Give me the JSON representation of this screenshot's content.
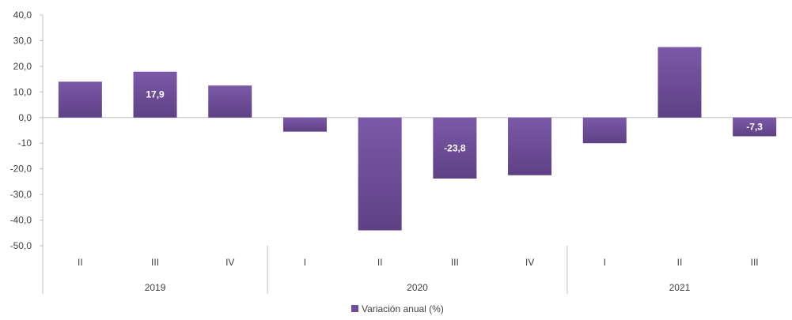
{
  "chart_data": {
    "type": "bar",
    "categories": [
      "II",
      "III",
      "IV",
      "I",
      "II",
      "III",
      "IV",
      "I",
      "II",
      "III"
    ],
    "groups": [
      {
        "label": "2019",
        "categories": [
          "II",
          "III",
          "IV"
        ]
      },
      {
        "label": "2020",
        "categories": [
          "I",
          "II",
          "III",
          "IV"
        ]
      },
      {
        "label": "2021",
        "categories": [
          "I",
          "II",
          "III"
        ]
      }
    ],
    "series": [
      {
        "name": "Variación anual (%)",
        "values": [
          14.0,
          17.9,
          12.5,
          -5.5,
          -44.0,
          -23.8,
          -22.5,
          -10.0,
          27.5,
          -7.3
        ],
        "data_labels": [
          "",
          "17,9",
          "",
          "",
          "",
          "-23,8",
          "",
          "",
          "",
          "-7,3"
        ],
        "color": "#6e4d9a"
      }
    ],
    "yticks": [
      "40,0",
      "30,0",
      "20,0",
      "10,0",
      "0,0",
      "-10",
      "-20,0",
      "-30,0",
      "-40,0",
      "-50,0"
    ],
    "ylim": [
      -50,
      40
    ],
    "grid": false,
    "legend_position": "bottom",
    "title": "",
    "xlabel": "",
    "ylabel": ""
  }
}
